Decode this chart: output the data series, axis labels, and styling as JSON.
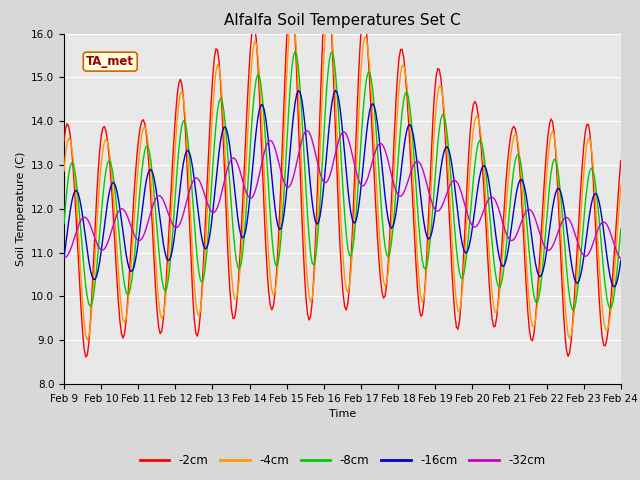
{
  "title": "Alfalfa Soil Temperatures Set C",
  "xlabel": "Time",
  "ylabel": "Soil Temperature (C)",
  "ylim": [
    8.0,
    16.0
  ],
  "yticks": [
    8.0,
    9.0,
    10.0,
    11.0,
    12.0,
    13.0,
    14.0,
    15.0,
    16.0
  ],
  "colors": {
    "-2cm": "#ff0000",
    "-4cm": "#ff9900",
    "-8cm": "#00cc00",
    "-16cm": "#0000cc",
    "-32cm": "#cc00cc"
  },
  "legend_labels": [
    "-2cm",
    "-4cm",
    "-8cm",
    "-16cm",
    "-32cm"
  ],
  "annotation": "TA_met",
  "background_color": "#e8e8e8",
  "title_fontsize": 11,
  "axis_fontsize": 8,
  "tick_fontsize": 7.5
}
